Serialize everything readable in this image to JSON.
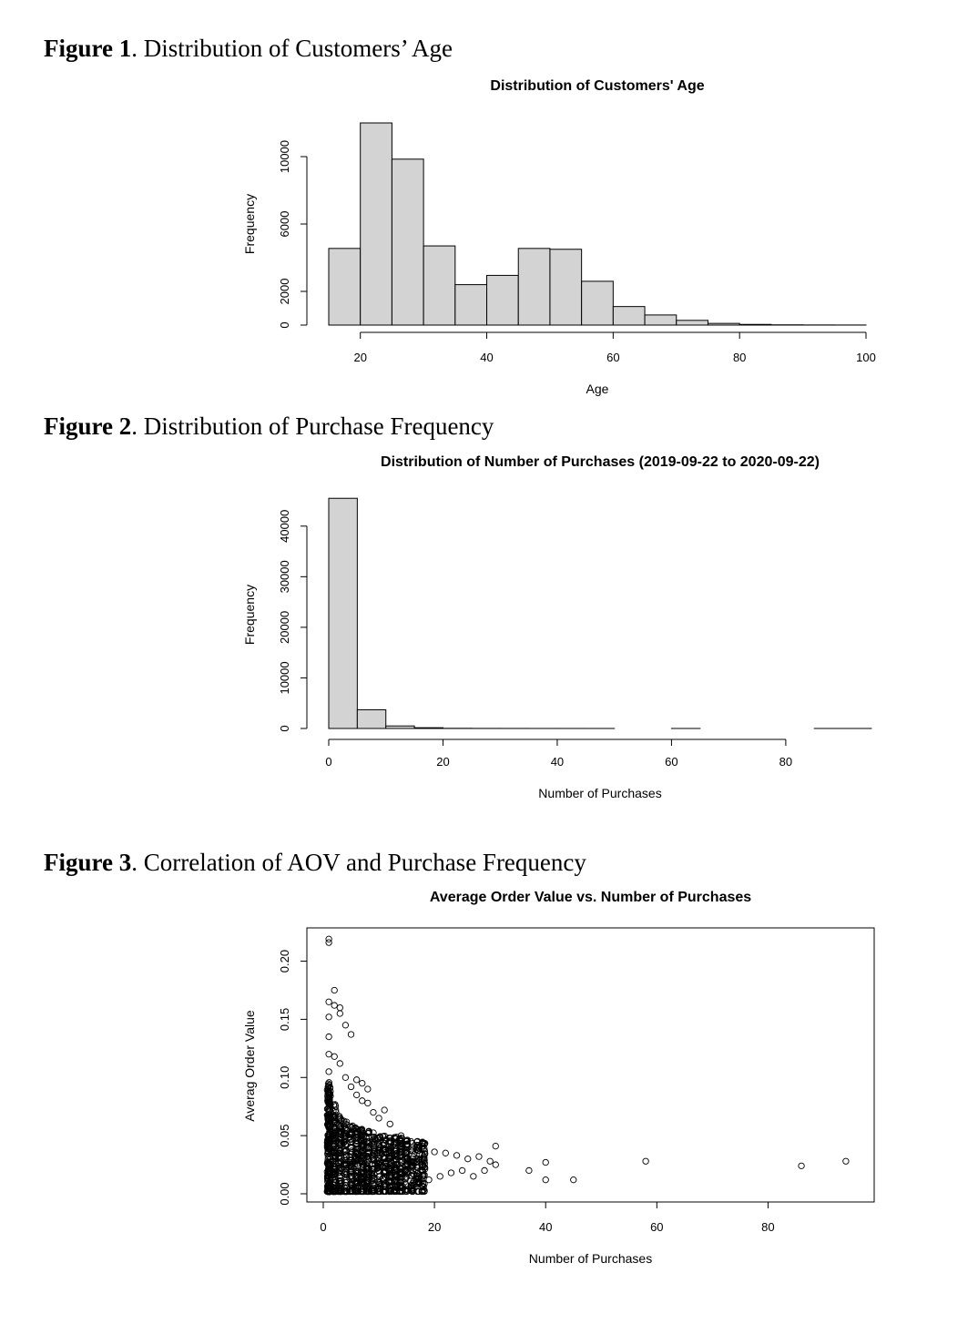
{
  "captions": [
    {
      "label": "Figure 1",
      "text": ". Distribution of Customers’ Age"
    },
    {
      "label": "Figure 2",
      "text": ". Distribution of Purchase Frequency"
    },
    {
      "label": "Figure 3",
      "text": ". Correlation of AOV and Purchase Frequency"
    }
  ],
  "chart_data": [
    {
      "type": "bar",
      "title": "Distribution of Customers' Age",
      "xlabel": "Age",
      "ylabel": "Frequency",
      "xlim": [
        15,
        100
      ],
      "ylim": [
        0,
        12000
      ],
      "xticks": [
        20,
        40,
        60,
        80,
        100
      ],
      "yticks": [
        0,
        2000,
        6000,
        10000
      ],
      "bin_width": 5,
      "bins": [
        15,
        20,
        25,
        30,
        35,
        40,
        45,
        50,
        55,
        60,
        65,
        70,
        75,
        80,
        85,
        90,
        95
      ],
      "values": [
        4550,
        12000,
        9850,
        4700,
        2400,
        2950,
        4550,
        4500,
        2600,
        1100,
        600,
        280,
        100,
        40,
        15,
        8,
        5
      ]
    },
    {
      "type": "bar",
      "title": "Distribution of Number of Purchases (2019-09-22 to 2020-09-22)",
      "xlabel": "Number of Purchases",
      "ylabel": "Frequency",
      "xlim": [
        0,
        95
      ],
      "ylim": [
        0,
        45000
      ],
      "xticks": [
        0,
        20,
        40,
        60,
        80
      ],
      "yticks": [
        0,
        10000,
        20000,
        30000,
        40000
      ],
      "bin_width": 5,
      "bins": [
        0,
        5,
        10,
        15,
        20,
        25,
        30,
        35,
        40,
        45,
        50,
        55,
        60,
        65,
        70,
        75,
        80,
        85,
        90
      ],
      "values": [
        45500,
        3700,
        500,
        150,
        30,
        15,
        10,
        5,
        5,
        3,
        0,
        0,
        2,
        0,
        0,
        0,
        0,
        2,
        2
      ]
    },
    {
      "type": "scatter",
      "title": "Average Order Value vs. Number of Purchases",
      "xlabel": "Number of Purchases",
      "ylabel": "Averag Order Value",
      "xlim": [
        0,
        95
      ],
      "ylim": [
        0,
        0.22
      ],
      "xticks": [
        0,
        20,
        40,
        60,
        80
      ],
      "yticks": [
        0.0,
        0.05,
        0.1,
        0.15,
        0.2
      ],
      "ytick_labels": [
        "0.00",
        "0.05",
        "0.10",
        "0.15",
        "0.20"
      ],
      "points": [
        [
          1,
          0.219
        ],
        [
          1,
          0.216
        ],
        [
          1,
          0.165
        ],
        [
          2,
          0.175
        ],
        [
          2,
          0.162
        ],
        [
          3,
          0.16
        ],
        [
          3,
          0.155
        ],
        [
          1,
          0.152
        ],
        [
          4,
          0.145
        ],
        [
          1,
          0.135
        ],
        [
          5,
          0.137
        ],
        [
          1,
          0.12
        ],
        [
          2,
          0.118
        ],
        [
          3,
          0.112
        ],
        [
          1,
          0.105
        ],
        [
          4,
          0.1
        ],
        [
          6,
          0.098
        ],
        [
          7,
          0.095
        ],
        [
          8,
          0.09
        ],
        [
          5,
          0.092
        ],
        [
          6,
          0.085
        ],
        [
          7,
          0.08
        ],
        [
          8,
          0.078
        ],
        [
          11,
          0.072
        ],
        [
          9,
          0.07
        ],
        [
          10,
          0.065
        ],
        [
          12,
          0.06
        ],
        [
          14,
          0.05
        ],
        [
          15,
          0.045
        ],
        [
          16,
          0.04
        ],
        [
          18,
          0.038
        ],
        [
          20,
          0.036
        ],
        [
          22,
          0.035
        ],
        [
          24,
          0.033
        ],
        [
          26,
          0.03
        ],
        [
          28,
          0.032
        ],
        [
          30,
          0.028
        ],
        [
          31,
          0.041
        ],
        [
          31,
          0.025
        ],
        [
          29,
          0.02
        ],
        [
          27,
          0.015
        ],
        [
          25,
          0.02
        ],
        [
          23,
          0.018
        ],
        [
          21,
          0.015
        ],
        [
          19,
          0.012
        ],
        [
          17,
          0.008
        ],
        [
          16,
          0.003
        ],
        [
          37,
          0.02
        ],
        [
          40,
          0.027
        ],
        [
          40,
          0.012
        ],
        [
          45,
          0.012
        ],
        [
          58,
          0.028
        ],
        [
          86,
          0.024
        ],
        [
          94,
          0.028
        ]
      ]
    }
  ]
}
